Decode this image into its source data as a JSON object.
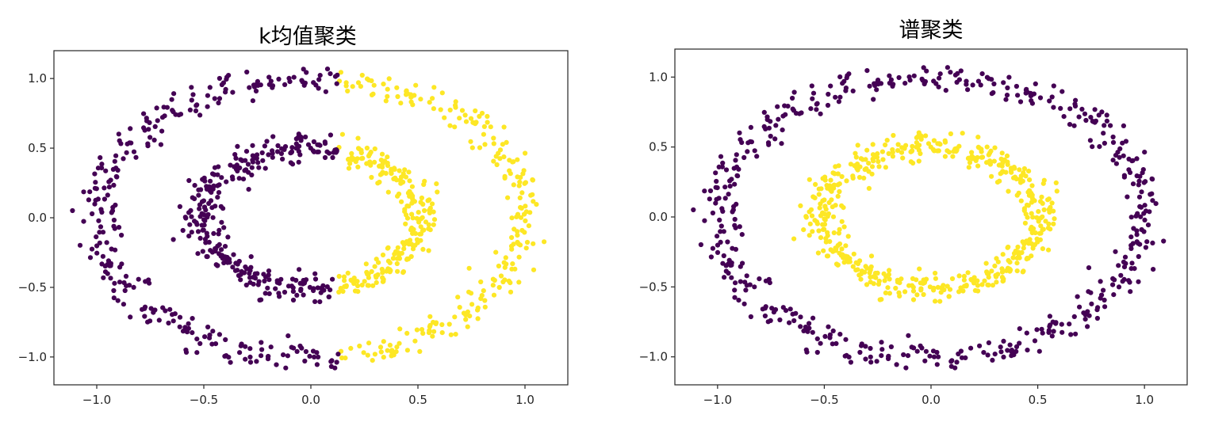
{
  "colors": {
    "cluster_a": "#440154",
    "cluster_b": "#fde725"
  },
  "chart_data": [
    {
      "type": "scatter",
      "title": "k均值聚类",
      "xlabel": "",
      "ylabel": "",
      "xlim": [
        -1.2,
        1.2
      ],
      "ylim": [
        -1.2,
        1.2
      ],
      "xticks": [
        "−1.0",
        "−0.5",
        "0.0",
        "0.5",
        "1.0"
      ],
      "yticks": [
        "1.0",
        "0.5",
        "0.0",
        "−0.5",
        "−1.0"
      ],
      "grid": false,
      "dataset": {
        "outer_radius": 1.0,
        "inner_radius": 0.5,
        "noise": 0.05,
        "points_per_circle": 500
      },
      "series": [
        {
          "cluster": 0,
          "color": "#440154",
          "region": "x < 0.13 (left half of both circles)"
        },
        {
          "cluster": 1,
          "color": "#fde725",
          "region": "x >= 0.13 (right half of both circles)"
        }
      ],
      "split_x": 0.13
    },
    {
      "type": "scatter",
      "title": "谱聚类",
      "xlabel": "",
      "ylabel": "",
      "xlim": [
        -1.2,
        1.2
      ],
      "ylim": [
        -1.2,
        1.2
      ],
      "xticks": [
        "−1.0",
        "−0.5",
        "0.0",
        "0.5",
        "1.0"
      ],
      "yticks": [
        "1.0",
        "0.5",
        "0.0",
        "−0.5",
        "−1.0"
      ],
      "grid": false,
      "dataset": {
        "outer_radius": 1.0,
        "inner_radius": 0.5,
        "noise": 0.05,
        "points_per_circle": 500
      },
      "series": [
        {
          "cluster": 0,
          "color": "#440154",
          "region": "outer circle (r = 1.0)"
        },
        {
          "cluster": 1,
          "color": "#fde725",
          "region": "inner circle (r = 0.5)"
        }
      ]
    }
  ]
}
